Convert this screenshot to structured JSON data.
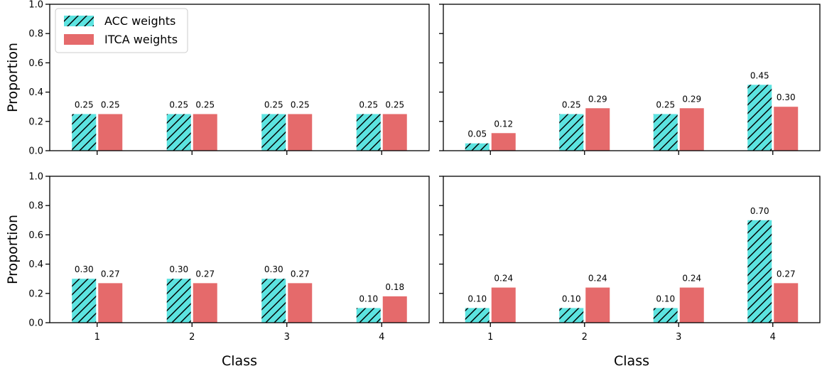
{
  "colors": {
    "acc": "#5ce3e0",
    "itca": "#e56a6b",
    "hatch": "#000000",
    "frame": "#000000"
  },
  "legend": {
    "placement": "upper-left",
    "entries": [
      "ACC weights",
      "ITCA weights"
    ]
  },
  "chart_data": [
    {
      "type": "bar",
      "categories": [
        "1",
        "2",
        "3",
        "4"
      ],
      "series": [
        {
          "name": "ACC weights",
          "values": [
            0.25,
            0.25,
            0.25,
            0.25
          ],
          "labels": [
            "0.25",
            "0.25",
            "0.25",
            "0.25"
          ]
        },
        {
          "name": "ITCA weights",
          "values": [
            0.25,
            0.25,
            0.25,
            0.25
          ],
          "labels": [
            "0.25",
            "0.25",
            "0.25",
            "0.25"
          ]
        }
      ],
      "ylabel": "Proportion",
      "xlabel": "",
      "ylim": [
        0,
        1
      ],
      "yticks": [
        "0.0",
        "0.2",
        "0.4",
        "0.6",
        "0.8",
        "1.0"
      ],
      "show_yticklabels": true,
      "show_xticklabels": false,
      "show_legend": true
    },
    {
      "type": "bar",
      "categories": [
        "1",
        "2",
        "3",
        "4"
      ],
      "series": [
        {
          "name": "ACC weights",
          "values": [
            0.05,
            0.25,
            0.25,
            0.45
          ],
          "labels": [
            "0.05",
            "0.25",
            "0.25",
            "0.45"
          ]
        },
        {
          "name": "ITCA weights",
          "values": [
            0.12,
            0.29,
            0.29,
            0.3
          ],
          "labels": [
            "0.12",
            "0.29",
            "0.29",
            "0.30"
          ]
        }
      ],
      "ylabel": "",
      "xlabel": "",
      "ylim": [
        0,
        1
      ],
      "yticks": [
        "0.0",
        "0.2",
        "0.4",
        "0.6",
        "0.8",
        "1.0"
      ],
      "show_yticklabels": false,
      "show_xticklabels": false,
      "show_legend": false
    },
    {
      "type": "bar",
      "categories": [
        "1",
        "2",
        "3",
        "4"
      ],
      "series": [
        {
          "name": "ACC weights",
          "values": [
            0.3,
            0.3,
            0.3,
            0.1
          ],
          "labels": [
            "0.30",
            "0.30",
            "0.30",
            "0.10"
          ]
        },
        {
          "name": "ITCA weights",
          "values": [
            0.27,
            0.27,
            0.27,
            0.18
          ],
          "labels": [
            "0.27",
            "0.27",
            "0.27",
            "0.18"
          ]
        }
      ],
      "ylabel": "Proportion",
      "xlabel": "Class",
      "ylim": [
        0,
        1
      ],
      "yticks": [
        "0.0",
        "0.2",
        "0.4",
        "0.6",
        "0.8",
        "1.0"
      ],
      "show_yticklabels": true,
      "show_xticklabels": true,
      "show_legend": false
    },
    {
      "type": "bar",
      "categories": [
        "1",
        "2",
        "3",
        "4"
      ],
      "series": [
        {
          "name": "ACC weights",
          "values": [
            0.1,
            0.1,
            0.1,
            0.7
          ],
          "labels": [
            "0.10",
            "0.10",
            "0.10",
            "0.70"
          ]
        },
        {
          "name": "ITCA weights",
          "values": [
            0.24,
            0.24,
            0.24,
            0.27
          ],
          "labels": [
            "0.24",
            "0.24",
            "0.24",
            "0.27"
          ]
        }
      ],
      "ylabel": "",
      "xlabel": "Class",
      "ylim": [
        0,
        1
      ],
      "yticks": [
        "0.0",
        "0.2",
        "0.4",
        "0.6",
        "0.8",
        "1.0"
      ],
      "show_yticklabels": false,
      "show_xticklabels": true,
      "show_legend": false
    }
  ]
}
